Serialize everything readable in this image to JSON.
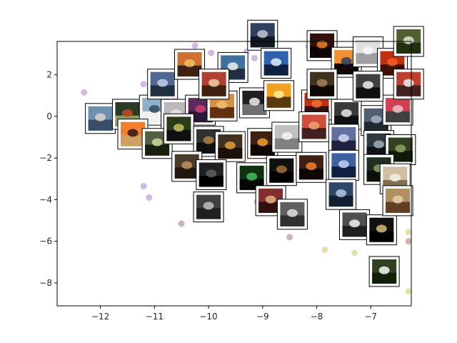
{
  "chart_data": {
    "type": "scatter",
    "title": "",
    "xlabel": "",
    "ylabel": "",
    "xlim": [
      -12.8,
      -6.25
    ],
    "ylim": [
      -9.1,
      3.6
    ],
    "grid": false,
    "xticks": [
      -12,
      -11,
      -10,
      -9,
      -8,
      -7
    ],
    "yticks": [
      2,
      0,
      -2,
      -4,
      -6,
      -8
    ],
    "xtick_labels": [
      "−12",
      "−11",
      "−10",
      "−9",
      "−8",
      "−7"
    ],
    "ytick_labels": [
      "2",
      "0",
      "−2",
      "−4",
      "−6",
      "−8"
    ],
    "points": [
      {
        "x": -12.3,
        "y": 1.15,
        "color": "#b48ad2"
      },
      {
        "x": -11.2,
        "y": 1.55,
        "color": "#b48ad2"
      },
      {
        "x": -11.05,
        "y": 1.5,
        "color": "#b48ad2"
      },
      {
        "x": -10.75,
        "y": 1.7,
        "color": "#b48ad2"
      },
      {
        "x": -10.25,
        "y": 3.4,
        "color": "#b48ad2"
      },
      {
        "x": -9.95,
        "y": 3.05,
        "color": "#b48ad2"
      },
      {
        "x": -9.3,
        "y": 3.1,
        "color": "#b48ad2"
      },
      {
        "x": -9.15,
        "y": 2.8,
        "color": "#b48ad2"
      },
      {
        "x": -8.15,
        "y": 3.35,
        "color": "#b48ad2"
      },
      {
        "x": -11.2,
        "y": -3.35,
        "color": "#b48ad2"
      },
      {
        "x": -11.1,
        "y": -3.9,
        "color": "#b48ad2"
      },
      {
        "x": -10.5,
        "y": -5.15,
        "color": "#b08080"
      },
      {
        "x": -9.1,
        "y": -4.1,
        "color": "#b08080"
      },
      {
        "x": -8.5,
        "y": -5.8,
        "color": "#b08080"
      },
      {
        "x": -7.85,
        "y": -6.4,
        "color": "#d2cf6e"
      },
      {
        "x": -7.3,
        "y": -6.55,
        "color": "#d2cf6e"
      },
      {
        "x": -6.3,
        "y": -5.55,
        "color": "#d2cf6e"
      },
      {
        "x": -6.3,
        "y": -8.4,
        "color": "#d2cf6e"
      },
      {
        "x": -6.3,
        "y": -6.0,
        "color": "#b08080"
      }
    ],
    "thumbnails": [
      {
        "x": -12.0,
        "y": -0.1,
        "palette": [
          "#6f8fb0",
          "#d9d4c8",
          "#3a4c66"
        ]
      },
      {
        "x": -11.5,
        "y": 0.1,
        "palette": [
          "#2b3a22",
          "#c44a2a",
          "#8aa060"
        ]
      },
      {
        "x": -11.0,
        "y": 0.3,
        "palette": [
          "#8fb0c8",
          "#354a5a",
          "#f0f0f0"
        ]
      },
      {
        "x": -10.6,
        "y": 0.1,
        "palette": [
          "#b9b9b9",
          "#e6e6e6",
          "#707070"
        ]
      },
      {
        "x": -10.15,
        "y": 0.3,
        "palette": [
          "#5a2a5a",
          "#d04070",
          "#2a1a3a"
        ]
      },
      {
        "x": -9.75,
        "y": 0.5,
        "palette": [
          "#d89040",
          "#f0c070",
          "#603010"
        ]
      },
      {
        "x": -9.15,
        "y": 0.65,
        "palette": [
          "#202020",
          "#f0f0f0",
          "#707070"
        ]
      },
      {
        "x": -8.7,
        "y": 1.0,
        "palette": [
          "#f2a020",
          "#fff0a0",
          "#5a3a10"
        ]
      },
      {
        "x": -8.0,
        "y": 0.55,
        "palette": [
          "#c03010",
          "#f07030",
          "#301010"
        ]
      },
      {
        "x": -7.45,
        "y": 0.1,
        "palette": [
          "#3a3a3a",
          "#e8e8e8",
          "#101010"
        ]
      },
      {
        "x": -6.9,
        "y": -0.2,
        "palette": [
          "#506070",
          "#a0b0c0",
          "#202830"
        ]
      },
      {
        "x": -6.5,
        "y": 0.3,
        "palette": [
          "#d04050",
          "#f0c0c8",
          "#404040"
        ]
      },
      {
        "x": -11.4,
        "y": -0.85,
        "palette": [
          "#f08030",
          "#301810",
          "#d0a060"
        ]
      },
      {
        "x": -10.95,
        "y": -1.3,
        "palette": [
          "#506040",
          "#d0d8a0",
          "#1a2010"
        ]
      },
      {
        "x": -10.55,
        "y": -0.6,
        "palette": [
          "#2a3a1a",
          "#c0c060",
          "#101010"
        ]
      },
      {
        "x": -10.0,
        "y": -1.2,
        "palette": [
          "#303030",
          "#b08040",
          "#101010"
        ]
      },
      {
        "x": -9.6,
        "y": -1.45,
        "palette": [
          "#403020",
          "#e0a040",
          "#1a1008"
        ]
      },
      {
        "x": -9.0,
        "y": -1.3,
        "palette": [
          "#402010",
          "#f0a030",
          "#100804"
        ]
      },
      {
        "x": -8.55,
        "y": -1.0,
        "palette": [
          "#c0c0c0",
          "#f5f5f5",
          "#808080"
        ]
      },
      {
        "x": -8.05,
        "y": -0.5,
        "palette": [
          "#d05040",
          "#f0a070",
          "#402020"
        ]
      },
      {
        "x": -7.5,
        "y": -1.1,
        "palette": [
          "#6070a0",
          "#d0d8f0",
          "#202040"
        ]
      },
      {
        "x": -6.85,
        "y": -1.4,
        "palette": [
          "#303840",
          "#a0b0b8",
          "#101418"
        ]
      },
      {
        "x": -6.45,
        "y": -1.6,
        "palette": [
          "#304020",
          "#90a060",
          "#101808"
        ]
      },
      {
        "x": -10.4,
        "y": -2.4,
        "palette": [
          "#4a3a2a",
          "#c09060",
          "#201810"
        ]
      },
      {
        "x": -9.95,
        "y": -2.8,
        "palette": [
          "#202020",
          "#606060",
          "#000000"
        ]
      },
      {
        "x": -9.2,
        "y": -2.95,
        "palette": [
          "#103010",
          "#40c060",
          "#050805"
        ]
      },
      {
        "x": -8.65,
        "y": -2.6,
        "palette": [
          "#101010",
          "#a07030",
          "#000000"
        ]
      },
      {
        "x": -8.1,
        "y": -2.45,
        "palette": [
          "#402010",
          "#f08030",
          "#100804"
        ]
      },
      {
        "x": -7.5,
        "y": -2.35,
        "palette": [
          "#4060a0",
          "#c0d0f0",
          "#102040"
        ]
      },
      {
        "x": -6.85,
        "y": -2.55,
        "palette": [
          "#203020",
          "#80a060",
          "#081008"
        ]
      },
      {
        "x": -6.55,
        "y": -3.0,
        "palette": [
          "#d0c0a0",
          "#f0f0e0",
          "#807050"
        ]
      },
      {
        "x": -10.0,
        "y": -4.35,
        "palette": [
          "#404040",
          "#c0c0c0",
          "#202020"
        ]
      },
      {
        "x": -8.85,
        "y": -4.05,
        "palette": [
          "#803030",
          "#e0b080",
          "#301010"
        ]
      },
      {
        "x": -8.45,
        "y": -4.7,
        "palette": [
          "#606060",
          "#e0e0e0",
          "#303030"
        ]
      },
      {
        "x": -7.55,
        "y": -3.75,
        "palette": [
          "#304868",
          "#b0c8e0",
          "#102030"
        ]
      },
      {
        "x": -7.3,
        "y": -5.2,
        "palette": [
          "#505050",
          "#f0f0f0",
          "#202020"
        ]
      },
      {
        "x": -6.8,
        "y": -5.45,
        "palette": [
          "#101010",
          "#d0c070",
          "#000000"
        ]
      },
      {
        "x": -6.5,
        "y": -4.05,
        "palette": [
          "#b09060",
          "#e0d0b0",
          "#604020"
        ]
      },
      {
        "x": -6.75,
        "y": -7.45,
        "palette": [
          "#304020",
          "#f8f8f8",
          "#102008"
        ]
      },
      {
        "x": -10.85,
        "y": 1.55,
        "palette": [
          "#506890",
          "#c0d0e8",
          "#203040"
        ]
      },
      {
        "x": -10.35,
        "y": 2.5,
        "palette": [
          "#d07030",
          "#f0c060",
          "#402010"
        ]
      },
      {
        "x": -9.55,
        "y": 2.35,
        "palette": [
          "#4070a0",
          "#f0f0f0",
          "#203040"
        ]
      },
      {
        "x": -9.9,
        "y": 1.55,
        "palette": [
          "#b04030",
          "#f0d0a0",
          "#402010"
        ]
      },
      {
        "x": -9.0,
        "y": 3.9,
        "palette": [
          "#304060",
          "#c0c8d8",
          "#101820"
        ]
      },
      {
        "x": -8.75,
        "y": 2.55,
        "palette": [
          "#3060b0",
          "#e0f0ff",
          "#102040"
        ]
      },
      {
        "x": -7.9,
        "y": 3.4,
        "palette": [
          "#301008",
          "#f08020",
          "#100400"
        ]
      },
      {
        "x": -7.45,
        "y": 2.6,
        "palette": [
          "#f09030",
          "#304060",
          "#100804"
        ]
      },
      {
        "x": -7.05,
        "y": 3.1,
        "palette": [
          "#e0e0e0",
          "#f8f8f8",
          "#a0a0a0"
        ]
      },
      {
        "x": -6.6,
        "y": 2.55,
        "palette": [
          "#c03010",
          "#f06020",
          "#401008"
        ]
      },
      {
        "x": -6.3,
        "y": 3.6,
        "palette": [
          "#506030",
          "#e0e0d0",
          "#203010"
        ]
      },
      {
        "x": -6.3,
        "y": 1.55,
        "palette": [
          "#c04030",
          "#f0f0f0",
          "#402020"
        ]
      },
      {
        "x": -7.05,
        "y": 1.45,
        "palette": [
          "#404040",
          "#f0f0f0",
          "#101010"
        ]
      },
      {
        "x": -7.9,
        "y": 1.55,
        "palette": [
          "#403020",
          "#a08060",
          "#100804"
        ]
      }
    ]
  }
}
